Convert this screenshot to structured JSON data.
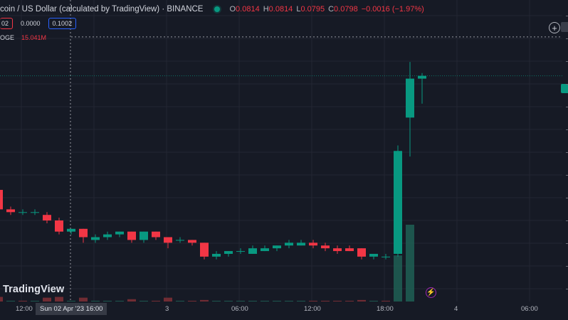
{
  "header": {
    "title": "coin / US Dollar (calculated by TradingView) · BINANCE",
    "ohlc": [
      {
        "label": "O",
        "value": "0.0814"
      },
      {
        "label": "H",
        "value": "0.0814"
      },
      {
        "label": "L",
        "value": "0.0795"
      },
      {
        "label": "C",
        "value": "0.0798"
      }
    ],
    "change": "−0.0016 (−1.97%)"
  },
  "indicator_row": {
    "red_pill": "02",
    "plain_value": "0.0000",
    "blue_pill": "0.1002"
  },
  "volume_row": {
    "label": "OGE",
    "value": "15.041M"
  },
  "x_axis": {
    "ticks": [
      {
        "label": "12:00"
      },
      {
        "label": "3"
      },
      {
        "label": "06:00"
      },
      {
        "label": "12:00"
      },
      {
        "label": "18:00"
      },
      {
        "label": "4"
      },
      {
        "label": "06:00"
      }
    ],
    "crosshair_date": "Sun 02 Apr '23  16:00"
  },
  "branding": {
    "logo_text": "TradingView"
  },
  "icons": {
    "add": "plus-circle-icon",
    "status": "market-status-dot-icon",
    "bolt": "lightning-bolt-icon"
  },
  "colors": {
    "background": "#161a25",
    "up": "#089981",
    "down": "#f23645",
    "grid": "#232632",
    "volume_down": "#7a2f35",
    "volume_up": "#1e5c52"
  },
  "chart_data": {
    "type": "candlestick",
    "candles": [
      {
        "o": 0.0814,
        "h": 0.0815,
        "l": 0.0805,
        "c": 0.0807
      },
      {
        "o": 0.0807,
        "h": 0.0808,
        "l": 0.0805,
        "c": 0.0806
      },
      {
        "o": 0.0806,
        "h": 0.0807,
        "l": 0.0805,
        "c": 0.0806
      },
      {
        "o": 0.0806,
        "h": 0.0807,
        "l": 0.0805,
        "c": 0.0806
      },
      {
        "o": 0.0805,
        "h": 0.0806,
        "l": 0.0802,
        "c": 0.0803
      },
      {
        "o": 0.0803,
        "h": 0.0804,
        "l": 0.0798,
        "c": 0.0799
      },
      {
        "o": 0.0799,
        "h": 0.08,
        "l": 0.0798,
        "c": 0.08
      },
      {
        "o": 0.08,
        "h": 0.08,
        "l": 0.0795,
        "c": 0.0797
      },
      {
        "o": 0.0796,
        "h": 0.0798,
        "l": 0.0795,
        "c": 0.0797
      },
      {
        "o": 0.0797,
        "h": 0.0799,
        "l": 0.0796,
        "c": 0.0798
      },
      {
        "o": 0.0798,
        "h": 0.0799,
        "l": 0.0797,
        "c": 0.0799
      },
      {
        "o": 0.0799,
        "h": 0.0799,
        "l": 0.0795,
        "c": 0.0796
      },
      {
        "o": 0.0796,
        "h": 0.0799,
        "l": 0.0795,
        "c": 0.0799
      },
      {
        "o": 0.0799,
        "h": 0.0799,
        "l": 0.0796,
        "c": 0.0797
      },
      {
        "o": 0.0797,
        "h": 0.0797,
        "l": 0.0793,
        "c": 0.0795
      },
      {
        "o": 0.0796,
        "h": 0.0797,
        "l": 0.0795,
        "c": 0.0796
      },
      {
        "o": 0.0796,
        "h": 0.0796,
        "l": 0.0794,
        "c": 0.0795
      },
      {
        "o": 0.0795,
        "h": 0.0795,
        "l": 0.0789,
        "c": 0.079
      },
      {
        "o": 0.079,
        "h": 0.0792,
        "l": 0.0789,
        "c": 0.0791
      },
      {
        "o": 0.0791,
        "h": 0.0792,
        "l": 0.079,
        "c": 0.0792
      },
      {
        "o": 0.0792,
        "h": 0.0793,
        "l": 0.0791,
        "c": 0.0792
      },
      {
        "o": 0.0791,
        "h": 0.0794,
        "l": 0.0791,
        "c": 0.0793
      },
      {
        "o": 0.0792,
        "h": 0.0794,
        "l": 0.0792,
        "c": 0.0793
      },
      {
        "o": 0.0793,
        "h": 0.0794,
        "l": 0.0792,
        "c": 0.0794
      },
      {
        "o": 0.0794,
        "h": 0.0796,
        "l": 0.0793,
        "c": 0.0795
      },
      {
        "o": 0.0794,
        "h": 0.0796,
        "l": 0.0794,
        "c": 0.0795
      },
      {
        "o": 0.0795,
        "h": 0.0796,
        "l": 0.0793,
        "c": 0.0794
      },
      {
        "o": 0.0794,
        "h": 0.0795,
        "l": 0.0792,
        "c": 0.0793
      },
      {
        "o": 0.0793,
        "h": 0.0794,
        "l": 0.0791,
        "c": 0.0792
      },
      {
        "o": 0.0793,
        "h": 0.0794,
        "l": 0.0792,
        "c": 0.0792
      },
      {
        "o": 0.0793,
        "h": 0.0793,
        "l": 0.0789,
        "c": 0.079
      },
      {
        "o": 0.079,
        "h": 0.0791,
        "l": 0.0789,
        "c": 0.0791
      },
      {
        "o": 0.079,
        "h": 0.0791,
        "l": 0.0789,
        "c": 0.079
      },
      {
        "o": 0.0791,
        "h": 0.083,
        "l": 0.079,
        "c": 0.0828
      },
      {
        "o": 0.084,
        "h": 0.086,
        "l": 0.0826,
        "c": 0.0854
      },
      {
        "o": 0.0854,
        "h": 0.0856,
        "l": 0.0845,
        "c": 0.0855
      }
    ],
    "volume": [
      {
        "v": 0.6,
        "up": false
      },
      {
        "v": 0.1,
        "up": true
      },
      {
        "v": 0.1,
        "up": false
      },
      {
        "v": 0.1,
        "up": true
      },
      {
        "v": 0.5,
        "up": false
      },
      {
        "v": 0.6,
        "up": false
      },
      {
        "v": 0.1,
        "up": true
      },
      {
        "v": 0.5,
        "up": false
      },
      {
        "v": 0.1,
        "up": true
      },
      {
        "v": 0.1,
        "up": true
      },
      {
        "v": 0.1,
        "up": true
      },
      {
        "v": 0.3,
        "up": false
      },
      {
        "v": 0.1,
        "up": true
      },
      {
        "v": 0.1,
        "up": false
      },
      {
        "v": 0.5,
        "up": false
      },
      {
        "v": 0.1,
        "up": true
      },
      {
        "v": 0.1,
        "up": false
      },
      {
        "v": 0.2,
        "up": false
      },
      {
        "v": 0.1,
        "up": true
      },
      {
        "v": 0.1,
        "up": true
      },
      {
        "v": 0.1,
        "up": true
      },
      {
        "v": 0.1,
        "up": true
      },
      {
        "v": 0.1,
        "up": true
      },
      {
        "v": 0.1,
        "up": true
      },
      {
        "v": 0.1,
        "up": true
      },
      {
        "v": 0.1,
        "up": true
      },
      {
        "v": 0.1,
        "up": false
      },
      {
        "v": 0.1,
        "up": false
      },
      {
        "v": 0.1,
        "up": false
      },
      {
        "v": 0.1,
        "up": false
      },
      {
        "v": 0.2,
        "up": false
      },
      {
        "v": 0.1,
        "up": true
      },
      {
        "v": 0.1,
        "up": false
      },
      {
        "v": 6.0,
        "up": true
      },
      {
        "v": 10.0,
        "up": true
      },
      {
        "v": 0.0,
        "up": true
      }
    ],
    "ylim": [
      0.078,
      0.087
    ],
    "volume_max": 10.0,
    "last_price": 0.0855,
    "crosshair_price": 0.0869
  }
}
